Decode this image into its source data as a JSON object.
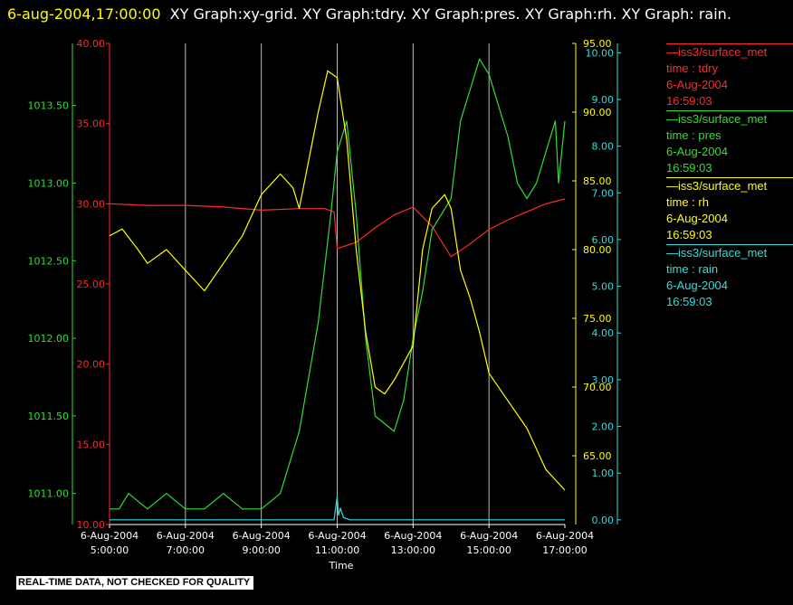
{
  "header": {
    "timestamp": "6-aug-2004,17:00:00",
    "titles": "XY Graph:xy-grid.  XY Graph:tdry.  XY Graph:pres.  XY Graph:rh.  XY Graph: rain."
  },
  "disclaimer": "REAL-TIME DATA, NOT CHECKED FOR QUALITY",
  "legend": [
    {
      "series": "—iss3/surface_met",
      "field": "time : tdry",
      "date": "6-Aug-2004",
      "time": "16:59:03",
      "color": "#ff2a2a"
    },
    {
      "series": "—iss3/surface_met",
      "field": "time : pres",
      "date": "6-Aug-2004",
      "time": "16:59:03",
      "color": "#33dd33"
    },
    {
      "series": "—iss3/surface_met",
      "field": "time : rh",
      "date": "6-Aug-2004",
      "time": "16:59:03",
      "color": "#ffff00"
    },
    {
      "series": "—iss3/surface_met",
      "field": "time : rain",
      "date": "6-Aug-2004",
      "time": "16:59:03",
      "color": "#33dddd"
    }
  ],
  "chart_data": {
    "type": "line",
    "xlabel": "Time",
    "x_ticks": [
      {
        "date": "6-Aug-2004",
        "time": "5:00:00"
      },
      {
        "date": "6-Aug-2004",
        "time": "7:00:00"
      },
      {
        "date": "6-Aug-2004",
        "time": "9:00:00"
      },
      {
        "date": "6-Aug-2004",
        "time": "11:00:00"
      },
      {
        "date": "6-Aug-2004",
        "time": "13:00:00"
      },
      {
        "date": "6-Aug-2004",
        "time": "15:00:00"
      },
      {
        "date": "6-Aug-2004",
        "time": "17:00:00"
      }
    ],
    "xlim": [
      "2004-08-06 05:00",
      "2004-08-06 17:00"
    ],
    "vertical_grid": true,
    "axes": {
      "tdry": {
        "ylim": [
          10,
          40
        ],
        "ticks": [
          "10.00",
          "15.00",
          "20.00",
          "25.00",
          "30.00",
          "35.00",
          "40.00"
        ],
        "color": "#ff2a2a"
      },
      "pres": {
        "ylim": [
          1010.8,
          1013.9
        ],
        "ticks": [
          "1011.00",
          "1011.50",
          "1012.00",
          "1012.50",
          "1013.00",
          "1013.50"
        ],
        "color": "#33dd33"
      },
      "rh": {
        "ylim": [
          60,
          95
        ],
        "ticks": [
          "65.00",
          "70.00",
          "75.00",
          "80.00",
          "85.00",
          "90.00",
          "95.00"
        ],
        "color": "#ffff00"
      },
      "rain": {
        "ylim": [
          -0.1,
          10.2
        ],
        "ticks": [
          "0.00",
          "1.00",
          "2.00",
          "3.00",
          "4.00",
          "5.00",
          "6.00",
          "7.00",
          "8.00",
          "9.00",
          "10.00"
        ],
        "color": "#33dddd"
      }
    },
    "series": [
      {
        "name": "time : tdry",
        "axis": "tdry",
        "color": "#ff2a2a",
        "x": [
          "05:00",
          "06:00",
          "07:00",
          "08:00",
          "09:00",
          "10:00",
          "10:40",
          "10:55",
          "11:00",
          "11:30",
          "12:00",
          "12:30",
          "13:00",
          "13:30",
          "14:00",
          "14:30",
          "15:00",
          "15:30",
          "16:00",
          "16:30",
          "17:00"
        ],
        "y": [
          30.0,
          29.9,
          29.9,
          29.8,
          29.6,
          29.7,
          29.7,
          29.5,
          27.2,
          27.6,
          28.5,
          29.3,
          29.8,
          28.6,
          26.7,
          27.5,
          28.4,
          29.0,
          29.5,
          30.0,
          30.3
        ]
      },
      {
        "name": "time : pres",
        "axis": "pres",
        "color": "#33dd33",
        "x": [
          "05:00",
          "05:15",
          "05:30",
          "06:00",
          "06:30",
          "07:00",
          "07:30",
          "08:00",
          "08:30",
          "09:00",
          "09:30",
          "10:00",
          "10:30",
          "10:50",
          "11:00",
          "11:15",
          "11:30",
          "11:45",
          "12:00",
          "12:30",
          "12:45",
          "13:00",
          "13:15",
          "13:30",
          "14:00",
          "14:15",
          "14:30",
          "14:45",
          "15:00",
          "15:15",
          "15:30",
          "15:45",
          "16:00",
          "16:15",
          "16:30",
          "16:45",
          "16:50",
          "17:00"
        ],
        "y": [
          1010.9,
          1010.9,
          1011.0,
          1010.9,
          1011.0,
          1010.9,
          1010.9,
          1011.0,
          1010.9,
          1010.9,
          1011.0,
          1011.4,
          1012.1,
          1012.8,
          1013.2,
          1013.4,
          1012.8,
          1012.0,
          1011.5,
          1011.4,
          1011.6,
          1012.0,
          1012.3,
          1012.7,
          1012.9,
          1013.4,
          1013.6,
          1013.8,
          1013.7,
          1013.5,
          1013.3,
          1013.0,
          1012.9,
          1013.0,
          1013.2,
          1013.4,
          1013.0,
          1013.4
        ]
      },
      {
        "name": "time : rh",
        "axis": "rh",
        "color": "#ffff00",
        "x": [
          "05:00",
          "05:20",
          "05:45",
          "06:00",
          "06:30",
          "07:00",
          "07:30",
          "08:00",
          "08:30",
          "09:00",
          "09:30",
          "09:50",
          "10:00",
          "10:30",
          "10:45",
          "11:00",
          "11:15",
          "11:30",
          "11:45",
          "12:00",
          "12:15",
          "12:30",
          "13:00",
          "13:15",
          "13:30",
          "13:50",
          "14:00",
          "14:15",
          "14:30",
          "14:45",
          "15:00",
          "15:30",
          "16:00",
          "16:30",
          "17:00"
        ],
        "y": [
          81.0,
          81.5,
          80.0,
          79.0,
          80.0,
          78.5,
          77.0,
          79.0,
          81.0,
          84.0,
          85.5,
          84.5,
          83.0,
          90.0,
          93.0,
          92.5,
          88.0,
          80.0,
          74.0,
          70.0,
          69.5,
          70.5,
          73.0,
          80.0,
          83.0,
          84.0,
          83.0,
          78.5,
          76.5,
          74.0,
          71.0,
          69.0,
          67.0,
          64.0,
          62.5
        ]
      },
      {
        "name": "time : rain",
        "axis": "rain",
        "color": "#33dddd",
        "x": [
          "05:00",
          "10:55",
          "11:00",
          "11:02",
          "11:05",
          "11:10",
          "11:20",
          "17:00"
        ],
        "y": [
          0,
          0,
          0.5,
          0.1,
          0.25,
          0.05,
          0,
          0
        ]
      }
    ]
  }
}
